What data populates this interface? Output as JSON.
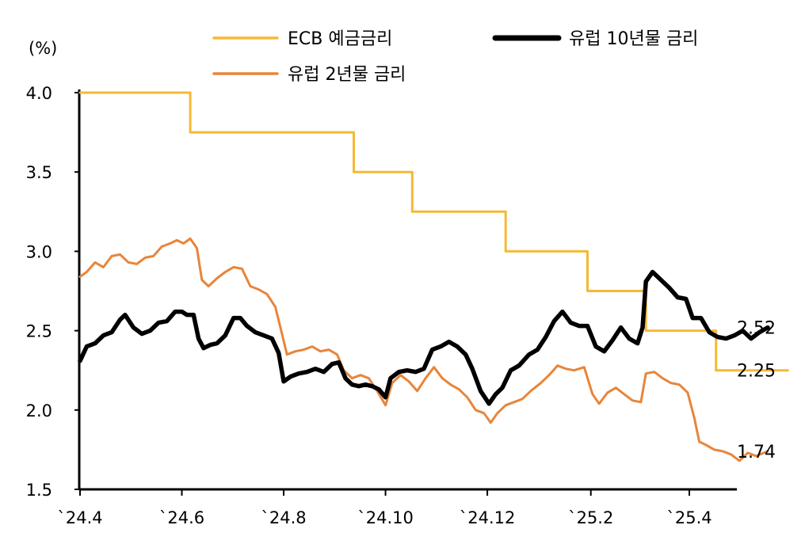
{
  "chart_data": {
    "type": "line",
    "unit": "(%)",
    "ylim": [
      1.5,
      4.0
    ],
    "yticks": [
      1.5,
      2.0,
      2.5,
      3.0,
      3.5,
      4.0
    ],
    "ytick_labels": [
      "1.5",
      "2.0",
      "2.5",
      "3.0",
      "3.5",
      "4.0"
    ],
    "xlim": [
      "2024-04-01",
      "2025-05-31"
    ],
    "xticks": [
      "2024-04-01",
      "2024-06-01",
      "2024-08-01",
      "2024-10-01",
      "2024-12-01",
      "2025-02-01",
      "2025-04-01"
    ],
    "xtick_labels": [
      "`24.4",
      "`24.6",
      "`24.8",
      "`24.10",
      "`24.12",
      "`25.2",
      "`25.4"
    ],
    "grid": false,
    "legend_position": "top",
    "series": [
      {
        "name": "ECB 예금금리",
        "color": "#F5B935",
        "line_style": "step",
        "end_label": "2.25",
        "points": [
          [
            "2024-04-01",
            4.0
          ],
          [
            "2024-06-06",
            4.0
          ],
          [
            "2024-06-06",
            3.75
          ],
          [
            "2024-09-12",
            3.75
          ],
          [
            "2024-09-12",
            3.5
          ],
          [
            "2024-10-17",
            3.5
          ],
          [
            "2024-10-17",
            3.25
          ],
          [
            "2024-12-12",
            3.25
          ],
          [
            "2024-12-12",
            3.0
          ],
          [
            "2025-01-30",
            3.0
          ],
          [
            "2025-01-30",
            2.75
          ],
          [
            "2025-03-06",
            2.75
          ],
          [
            "2025-03-06",
            2.5
          ],
          [
            "2025-04-17",
            2.5
          ],
          [
            "2025-04-17",
            2.25
          ],
          [
            "2025-05-30",
            2.25
          ]
        ]
      },
      {
        "name": "유럽 10년물 금리",
        "color": "#000000",
        "line_style": "line",
        "end_label": "2.52",
        "points": [
          [
            "2024-04-01",
            2.31
          ],
          [
            "2024-04-05",
            2.4
          ],
          [
            "2024-04-10",
            2.42
          ],
          [
            "2024-04-15",
            2.47
          ],
          [
            "2024-04-20",
            2.49
          ],
          [
            "2024-04-25",
            2.57
          ],
          [
            "2024-04-28",
            2.6
          ],
          [
            "2024-05-03",
            2.52
          ],
          [
            "2024-05-08",
            2.48
          ],
          [
            "2024-05-13",
            2.5
          ],
          [
            "2024-05-18",
            2.55
          ],
          [
            "2024-05-23",
            2.56
          ],
          [
            "2024-05-28",
            2.62
          ],
          [
            "2024-06-01",
            2.62
          ],
          [
            "2024-06-04",
            2.6
          ],
          [
            "2024-06-08",
            2.6
          ],
          [
            "2024-06-11",
            2.45
          ],
          [
            "2024-06-14",
            2.39
          ],
          [
            "2024-06-18",
            2.41
          ],
          [
            "2024-06-22",
            2.42
          ],
          [
            "2024-06-27",
            2.47
          ],
          [
            "2024-07-02",
            2.58
          ],
          [
            "2024-07-06",
            2.58
          ],
          [
            "2024-07-10",
            2.53
          ],
          [
            "2024-07-15",
            2.49
          ],
          [
            "2024-07-20",
            2.47
          ],
          [
            "2024-07-25",
            2.45
          ],
          [
            "2024-07-29",
            2.36
          ],
          [
            "2024-08-01",
            2.18
          ],
          [
            "2024-08-05",
            2.21
          ],
          [
            "2024-08-10",
            2.23
          ],
          [
            "2024-08-15",
            2.24
          ],
          [
            "2024-08-20",
            2.26
          ],
          [
            "2024-08-25",
            2.24
          ],
          [
            "2024-08-30",
            2.29
          ],
          [
            "2024-09-03",
            2.3
          ],
          [
            "2024-09-07",
            2.2
          ],
          [
            "2024-09-11",
            2.16
          ],
          [
            "2024-09-15",
            2.15
          ],
          [
            "2024-09-19",
            2.16
          ],
          [
            "2024-09-23",
            2.15
          ],
          [
            "2024-09-27",
            2.13
          ],
          [
            "2024-10-01",
            2.08
          ],
          [
            "2024-10-04",
            2.2
          ],
          [
            "2024-10-09",
            2.24
          ],
          [
            "2024-10-14",
            2.25
          ],
          [
            "2024-10-19",
            2.24
          ],
          [
            "2024-10-24",
            2.26
          ],
          [
            "2024-10-29",
            2.38
          ],
          [
            "2024-11-03",
            2.4
          ],
          [
            "2024-11-08",
            2.43
          ],
          [
            "2024-11-13",
            2.4
          ],
          [
            "2024-11-18",
            2.35
          ],
          [
            "2024-11-22",
            2.26
          ],
          [
            "2024-11-27",
            2.12
          ],
          [
            "2024-12-02",
            2.04
          ],
          [
            "2024-12-06",
            2.1
          ],
          [
            "2024-12-10",
            2.14
          ],
          [
            "2024-12-15",
            2.25
          ],
          [
            "2024-12-20",
            2.28
          ],
          [
            "2024-12-26",
            2.35
          ],
          [
            "2024-12-31",
            2.38
          ],
          [
            "2025-01-05",
            2.46
          ],
          [
            "2025-01-10",
            2.56
          ],
          [
            "2025-01-15",
            2.62
          ],
          [
            "2025-01-20",
            2.55
          ],
          [
            "2025-01-25",
            2.53
          ],
          [
            "2025-01-30",
            2.53
          ],
          [
            "2025-02-04",
            2.4
          ],
          [
            "2025-02-09",
            2.37
          ],
          [
            "2025-02-14",
            2.44
          ],
          [
            "2025-02-19",
            2.52
          ],
          [
            "2025-02-24",
            2.45
          ],
          [
            "2025-03-01",
            2.42
          ],
          [
            "2025-03-04",
            2.52
          ],
          [
            "2025-03-06",
            2.81
          ],
          [
            "2025-03-10",
            2.87
          ],
          [
            "2025-03-15",
            2.82
          ],
          [
            "2025-03-20",
            2.77
          ],
          [
            "2025-03-25",
            2.71
          ],
          [
            "2025-03-30",
            2.7
          ],
          [
            "2025-04-03",
            2.58
          ],
          [
            "2025-04-08",
            2.58
          ],
          [
            "2025-04-13",
            2.49
          ],
          [
            "2025-04-18",
            2.46
          ],
          [
            "2025-04-23",
            2.45
          ],
          [
            "2025-04-28",
            2.47
          ],
          [
            "2025-05-03",
            2.5
          ],
          [
            "2025-05-08",
            2.45
          ],
          [
            "2025-05-13",
            2.49
          ],
          [
            "2025-05-18",
            2.52
          ]
        ]
      },
      {
        "name": "유럽 2년물 금리",
        "color": "#E8853A",
        "line_style": "line",
        "end_label": "1.74",
        "points": [
          [
            "2024-04-01",
            2.84
          ],
          [
            "2024-04-05",
            2.87
          ],
          [
            "2024-04-10",
            2.93
          ],
          [
            "2024-04-15",
            2.9
          ],
          [
            "2024-04-20",
            2.97
          ],
          [
            "2024-04-25",
            2.98
          ],
          [
            "2024-04-30",
            2.93
          ],
          [
            "2024-05-05",
            2.92
          ],
          [
            "2024-05-10",
            2.96
          ],
          [
            "2024-05-15",
            2.97
          ],
          [
            "2024-05-20",
            3.03
          ],
          [
            "2024-05-25",
            3.05
          ],
          [
            "2024-05-29",
            3.07
          ],
          [
            "2024-06-02",
            3.05
          ],
          [
            "2024-06-06",
            3.08
          ],
          [
            "2024-06-10",
            3.02
          ],
          [
            "2024-06-13",
            2.82
          ],
          [
            "2024-06-17",
            2.78
          ],
          [
            "2024-06-22",
            2.83
          ],
          [
            "2024-06-27",
            2.87
          ],
          [
            "2024-07-02",
            2.9
          ],
          [
            "2024-07-07",
            2.89
          ],
          [
            "2024-07-12",
            2.78
          ],
          [
            "2024-07-17",
            2.76
          ],
          [
            "2024-07-22",
            2.73
          ],
          [
            "2024-07-27",
            2.65
          ],
          [
            "2024-07-31",
            2.48
          ],
          [
            "2024-08-03",
            2.35
          ],
          [
            "2024-08-08",
            2.37
          ],
          [
            "2024-08-13",
            2.38
          ],
          [
            "2024-08-18",
            2.4
          ],
          [
            "2024-08-23",
            2.37
          ],
          [
            "2024-08-28",
            2.38
          ],
          [
            "2024-09-02",
            2.35
          ],
          [
            "2024-09-06",
            2.25
          ],
          [
            "2024-09-11",
            2.2
          ],
          [
            "2024-09-16",
            2.22
          ],
          [
            "2024-09-21",
            2.2
          ],
          [
            "2024-09-26",
            2.12
          ],
          [
            "2024-10-01",
            2.03
          ],
          [
            "2024-10-05",
            2.17
          ],
          [
            "2024-10-10",
            2.22
          ],
          [
            "2024-10-15",
            2.18
          ],
          [
            "2024-10-20",
            2.12
          ],
          [
            "2024-10-25",
            2.2
          ],
          [
            "2024-10-30",
            2.27
          ],
          [
            "2024-11-04",
            2.2
          ],
          [
            "2024-11-09",
            2.16
          ],
          [
            "2024-11-14",
            2.13
          ],
          [
            "2024-11-19",
            2.08
          ],
          [
            "2024-11-24",
            2.0
          ],
          [
            "2024-11-29",
            1.98
          ],
          [
            "2024-12-03",
            1.92
          ],
          [
            "2024-12-07",
            1.98
          ],
          [
            "2024-12-12",
            2.03
          ],
          [
            "2024-12-17",
            2.05
          ],
          [
            "2024-12-22",
            2.07
          ],
          [
            "2024-12-27",
            2.12
          ],
          [
            "2025-01-02",
            2.17
          ],
          [
            "2025-01-07",
            2.22
          ],
          [
            "2025-01-12",
            2.28
          ],
          [
            "2025-01-17",
            2.26
          ],
          [
            "2025-01-22",
            2.25
          ],
          [
            "2025-01-28",
            2.27
          ],
          [
            "2025-02-02",
            2.1
          ],
          [
            "2025-02-06",
            2.04
          ],
          [
            "2025-02-11",
            2.11
          ],
          [
            "2025-02-16",
            2.14
          ],
          [
            "2025-02-21",
            2.1
          ],
          [
            "2025-02-26",
            2.06
          ],
          [
            "2025-03-03",
            2.05
          ],
          [
            "2025-03-06",
            2.23
          ],
          [
            "2025-03-11",
            2.24
          ],
          [
            "2025-03-16",
            2.2
          ],
          [
            "2025-03-21",
            2.17
          ],
          [
            "2025-03-26",
            2.16
          ],
          [
            "2025-03-31",
            2.11
          ],
          [
            "2025-04-04",
            1.95
          ],
          [
            "2025-04-07",
            1.8
          ],
          [
            "2025-04-11",
            1.78
          ],
          [
            "2025-04-16",
            1.75
          ],
          [
            "2025-04-21",
            1.74
          ],
          [
            "2025-04-26",
            1.72
          ],
          [
            "2025-05-01",
            1.68
          ],
          [
            "2025-05-06",
            1.73
          ],
          [
            "2025-05-11",
            1.71
          ],
          [
            "2025-05-18",
            1.74
          ]
        ]
      }
    ]
  }
}
